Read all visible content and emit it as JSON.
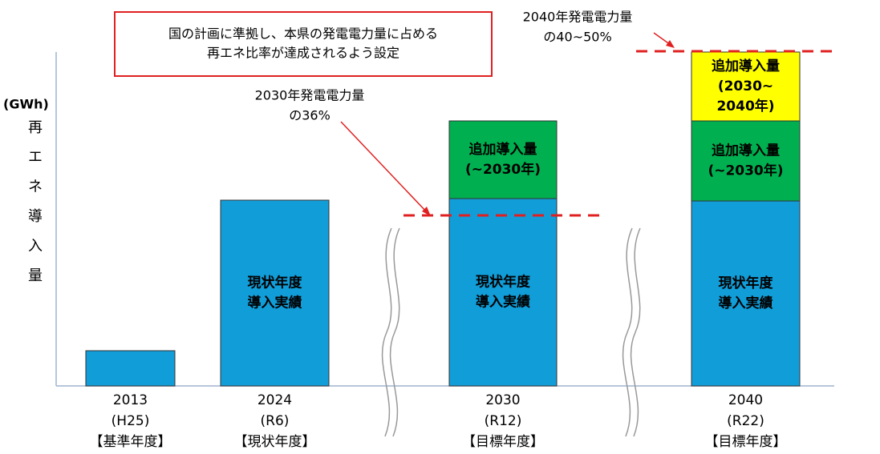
{
  "annotations": {
    "note": [
      "国の計画に準拠し、本県の発電電力量に占める",
      "再エネ比率が達成されるよう設定"
    ],
    "target_2040": [
      "2040年発電電力量",
      "の40~50%"
    ],
    "target_2030": [
      "2030年発電電力量",
      "の36%"
    ]
  },
  "axis": {
    "unit": "(GWh)",
    "label": [
      "再",
      "エ",
      "ネ",
      "導",
      "入",
      "量"
    ]
  },
  "bars": [
    {
      "x_label": [
        "2013",
        "(H25)",
        "【基準年度】"
      ],
      "segments": []
    },
    {
      "x_label": [
        "2024",
        "(R6)",
        "【現状年度】"
      ],
      "segments": [
        [
          "現状年度",
          "導入実績"
        ]
      ]
    },
    {
      "x_label": [
        "2030",
        "(R12)",
        "【目標年度】"
      ],
      "segments": [
        [
          "現状年度",
          "導入実績"
        ],
        [
          "追加導入量",
          "(~2030年)"
        ]
      ]
    },
    {
      "x_label": [
        "2040",
        "(R22)",
        "【目標年度】"
      ],
      "segments": [
        [
          "現状年度",
          "導入実績"
        ],
        [
          "追加導入量",
          "(~2030年)"
        ],
        [
          "追加導入量",
          "(2030~",
          "2040年)"
        ]
      ]
    }
  ]
}
